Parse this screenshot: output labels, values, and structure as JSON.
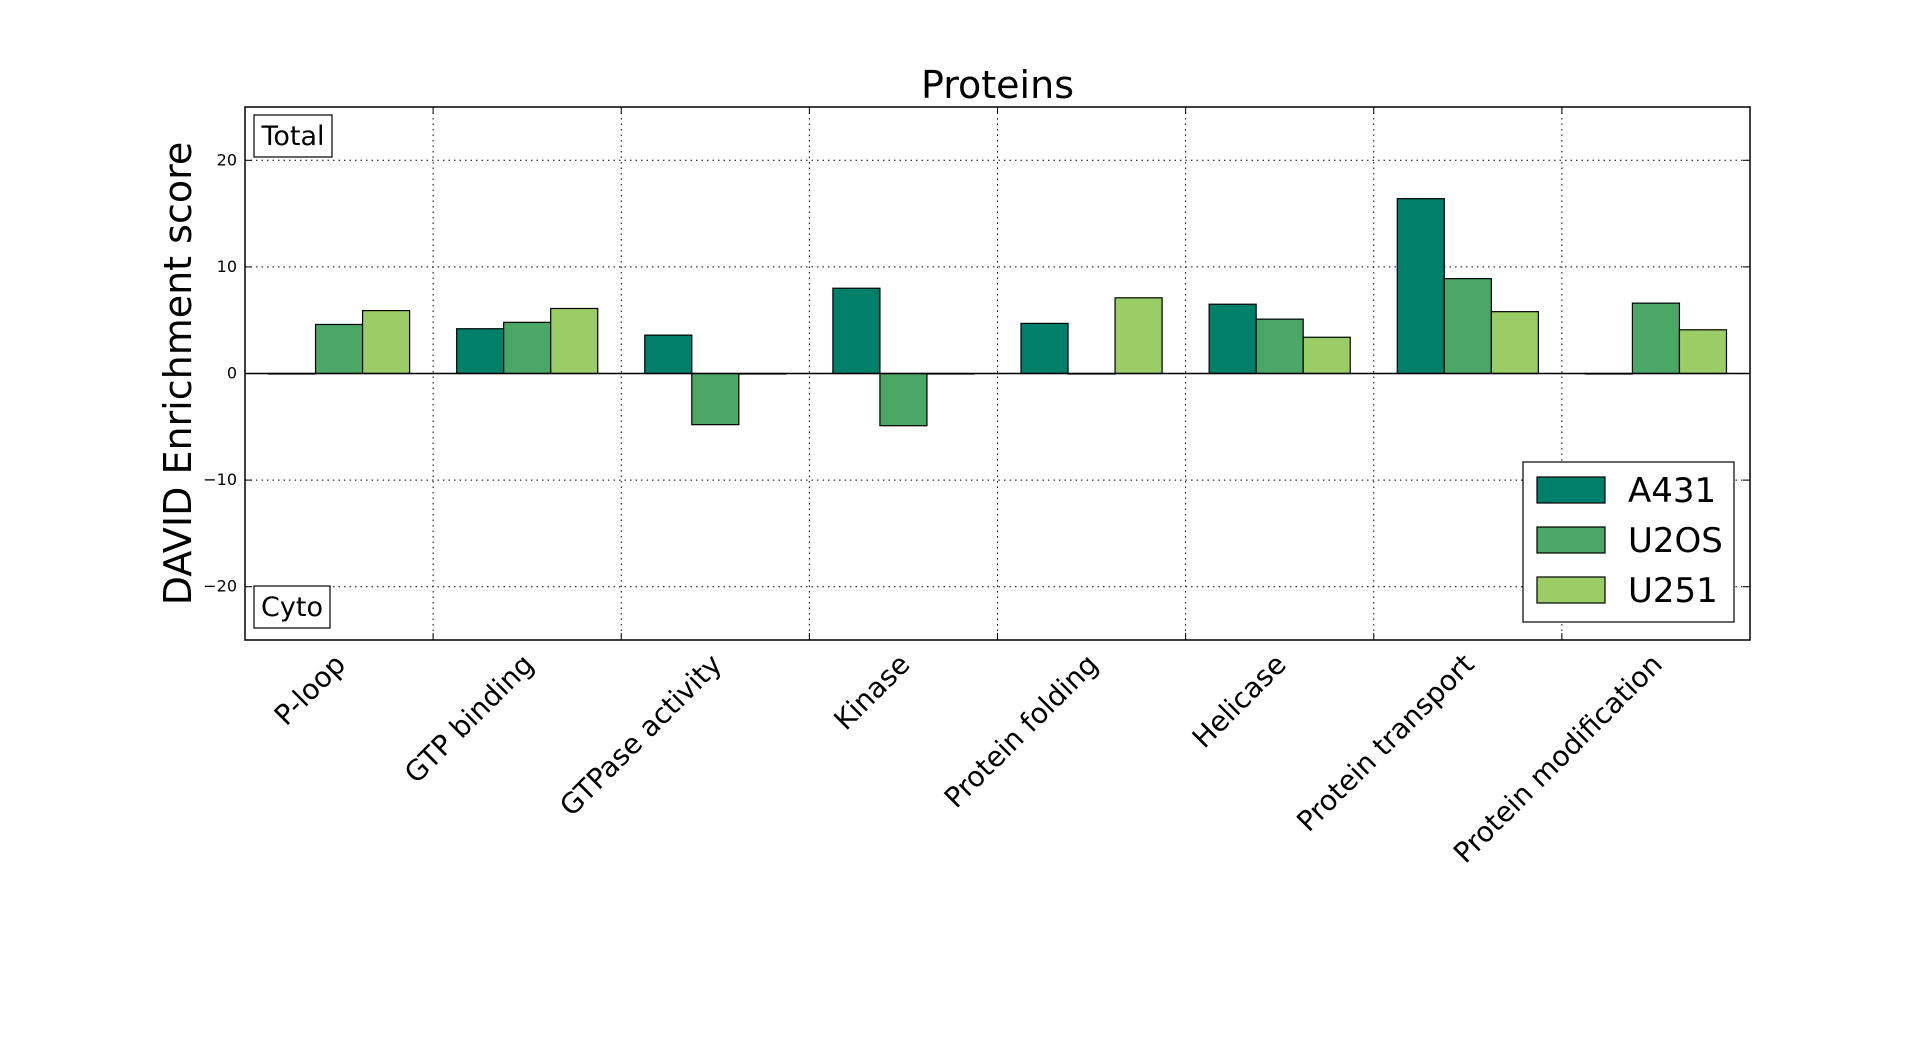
{
  "chart_data": {
    "type": "bar",
    "title": "Proteins",
    "xlabel": "",
    "ylabel": "DAVID Enrichment score",
    "ylim": [
      -25,
      25
    ],
    "yticks": [
      -20,
      -10,
      0,
      10,
      20
    ],
    "ytick_labels": [
      "−20",
      "−10",
      "0",
      "10",
      "20"
    ],
    "grid": true,
    "legend_position": "lower-right",
    "categories": [
      "P-loop",
      "GTP binding",
      "GTPase activity",
      "Kinase",
      "Protein folding",
      "Helicase",
      "Protein transport",
      "Protein modification"
    ],
    "series": [
      {
        "name": "A431",
        "color": "#00806a",
        "values": [
          0,
          4.2,
          3.6,
          8.0,
          4.7,
          6.5,
          16.4,
          0
        ]
      },
      {
        "name": "U2OS",
        "color": "#4aa766",
        "values": [
          4.6,
          4.8,
          -4.8,
          -4.9,
          0,
          5.1,
          8.9,
          6.6
        ]
      },
      {
        "name": "U251",
        "color": "#9acd65",
        "values": [
          5.9,
          6.1,
          0,
          0,
          7.1,
          3.4,
          5.8,
          4.1
        ]
      }
    ],
    "annotations": {
      "top": "Total",
      "bottom": "Cyto"
    }
  }
}
